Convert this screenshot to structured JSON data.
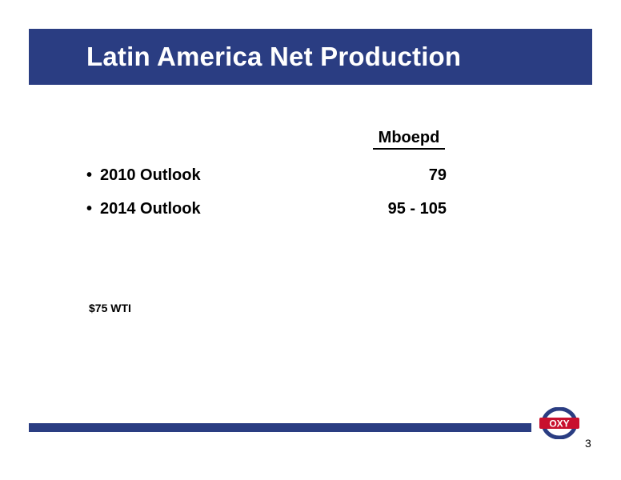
{
  "slide": {
    "title": "Latin America Net Production",
    "column_header": "Mboepd",
    "rows": [
      {
        "bullet": "•",
        "label": "2010 Outlook",
        "value": "79"
      },
      {
        "bullet": "•",
        "label": "2014 Outlook",
        "value": "95 - 105"
      }
    ],
    "note": "$75 WTI",
    "page_number": "3"
  },
  "logo": {
    "text": "OXY",
    "icon": "oxy-logo-icon",
    "ring_color": "#2a3d82",
    "badge_color": "#c8102e"
  },
  "colors": {
    "brand_band": "#2a3d82",
    "background": "#ffffff"
  }
}
